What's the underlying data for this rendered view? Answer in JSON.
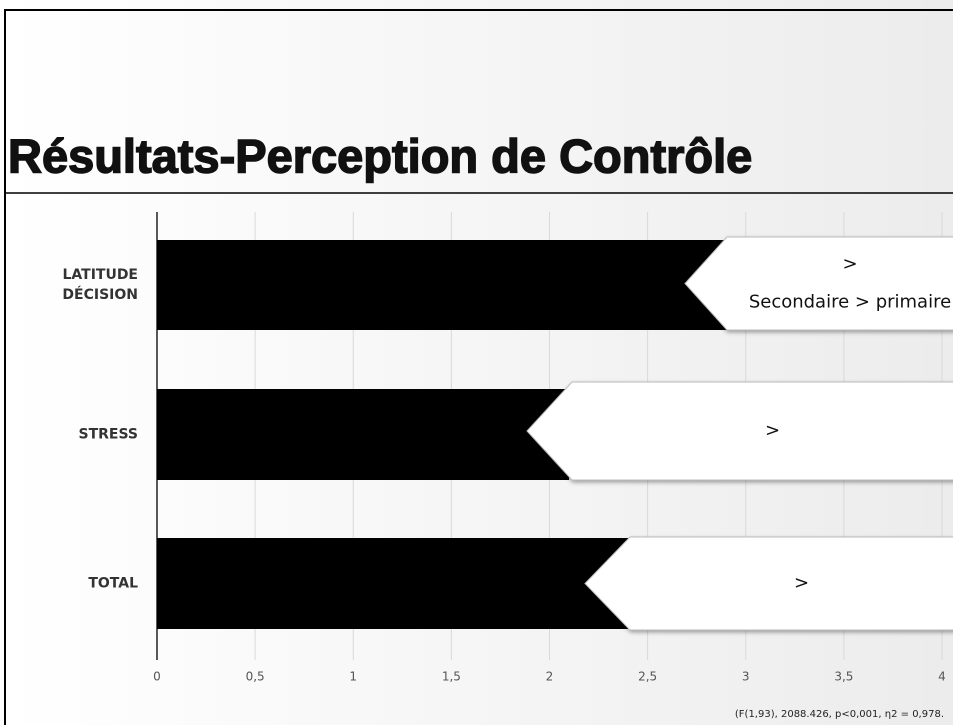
{
  "chart_data": {
    "type": "bar",
    "orientation": "horizontal",
    "title": "Résultats-Perception de Contrôle",
    "categories": [
      "LATITUDE DÉCISION",
      "STRESS",
      "TOTAL"
    ],
    "values": [
      3.35,
      2.1,
      2.4
    ],
    "color": "#000000",
    "xlim": [
      0,
      4
    ],
    "xticks": [
      0,
      {
        "value": 0.5,
        "label": "0,5"
      },
      1,
      {
        "value": 1.5,
        "label": "1,5"
      },
      2,
      {
        "value": 2.5,
        "label": "2,5"
      },
      3,
      {
        "value": 3.5,
        "label": "3,5"
      },
      4
    ],
    "grid": true,
    "callouts": [
      [
        ">",
        "Secondaire > primaire"
      ],
      [
        ">"
      ],
      [
        ">"
      ]
    ],
    "footnote": "(F(1,93), 2088.426, p<0,001, η2 = 0,978."
  }
}
